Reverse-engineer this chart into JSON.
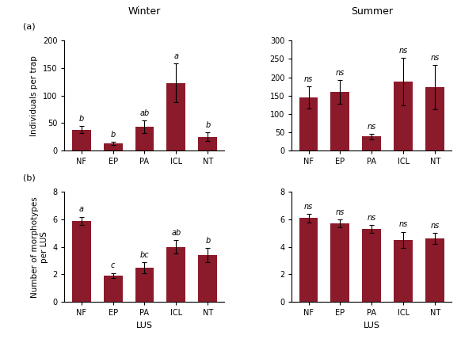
{
  "winter_a_values": [
    38,
    13,
    43,
    123,
    25
  ],
  "winter_a_errors": [
    7,
    3,
    12,
    35,
    8
  ],
  "winter_a_labels": [
    "b",
    "b",
    "ab",
    "a",
    "b"
  ],
  "summer_a_values": [
    145,
    160,
    38,
    188,
    173
  ],
  "summer_a_errors": [
    30,
    33,
    7,
    65,
    60
  ],
  "summer_a_labels": [
    "ns",
    "ns",
    "ns",
    "ns",
    "ns"
  ],
  "winter_b_values": [
    5.9,
    1.9,
    2.5,
    4.0,
    3.4
  ],
  "winter_b_errors": [
    0.3,
    0.2,
    0.4,
    0.5,
    0.5
  ],
  "winter_b_labels": [
    "a",
    "c",
    "bc",
    "ab",
    "b"
  ],
  "summer_b_values": [
    6.1,
    5.7,
    5.3,
    4.5,
    4.6
  ],
  "summer_b_errors": [
    0.3,
    0.3,
    0.3,
    0.6,
    0.4
  ],
  "summer_b_labels": [
    "ns",
    "ns",
    "ns",
    "ns",
    "ns"
  ],
  "categories": [
    "NF",
    "EP",
    "PA",
    "ICL",
    "NT"
  ],
  "bar_color": "#8B1A2A",
  "winter_title": "Winter",
  "summer_title": "Summer",
  "xlabel": "LUS",
  "ylabel_a": "Individuals per trap",
  "ylabel_b": "Number of morphotypes\nper LUS",
  "panel_a_label": "(a)",
  "panel_b_label": "(b)",
  "winter_a_ylim": [
    0,
    200
  ],
  "winter_a_yticks": [
    0,
    50,
    100,
    150,
    200
  ],
  "summer_a_ylim": [
    0,
    300
  ],
  "summer_a_yticks": [
    0,
    50,
    100,
    150,
    200,
    250,
    300
  ],
  "winter_b_ylim": [
    0,
    8
  ],
  "winter_b_yticks": [
    0,
    2,
    4,
    6,
    8
  ],
  "summer_b_ylim": [
    0,
    8
  ],
  "summer_b_yticks": [
    0,
    2,
    4,
    6,
    8
  ]
}
